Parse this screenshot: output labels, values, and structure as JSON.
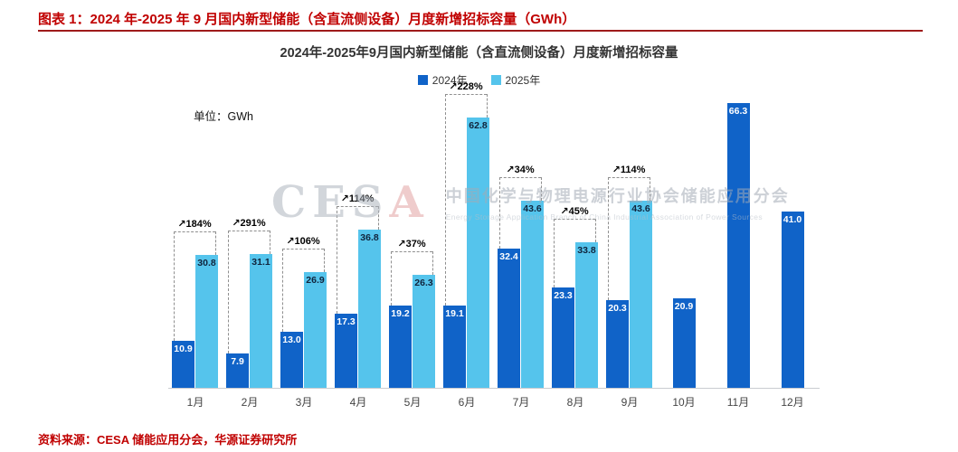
{
  "page": {
    "header_title": "图表 1：2024 年-2025 年 9 月国内新型储能（含直流侧设备）月度新增招标容量（GWh）",
    "source": "资料来源：CESA 储能应用分会，华源证券研究所"
  },
  "colors": {
    "accent_red": "#c00000",
    "rule_red": "#9e1b1b",
    "dark_blue": "#1063c8",
    "light_blue": "#55c4ec"
  },
  "watermark": {
    "logo_main": "CES",
    "logo_accent": "A",
    "cn": "中国化学与物理电源行业协会储能应用分会",
    "en": "Energy Storage Application Branch of China Industrial Association of Power Sources"
  },
  "chart_data": {
    "type": "bar",
    "title": "2024年-2025年9月国内新型储能（含直流侧设备）月度新增招标容量",
    "unit_label": "单位：GWh",
    "categories": [
      "1月",
      "2月",
      "3月",
      "4月",
      "5月",
      "6月",
      "7月",
      "8月",
      "9月",
      "10月",
      "11月",
      "12月"
    ],
    "series": [
      {
        "name": "2024年",
        "color": "#1063c8",
        "values": [
          10.9,
          7.9,
          13.0,
          17.3,
          19.2,
          19.1,
          32.4,
          23.3,
          20.3,
          20.9,
          66.3,
          41.0
        ]
      },
      {
        "name": "2025年",
        "color": "#55c4ec",
        "values": [
          30.8,
          31.1,
          26.9,
          36.8,
          26.3,
          62.8,
          43.6,
          33.8,
          43.6,
          null,
          null,
          null
        ]
      }
    ],
    "growth_labels": [
      "↗184%",
      "↗291%",
      "↗106%",
      "↗114%",
      "↗37%",
      "↗228%",
      "↗34%",
      "↗45%",
      "↗114%",
      null,
      null,
      null
    ],
    "ylim": [
      0,
      70
    ],
    "legend_position": "top",
    "grid": false
  }
}
